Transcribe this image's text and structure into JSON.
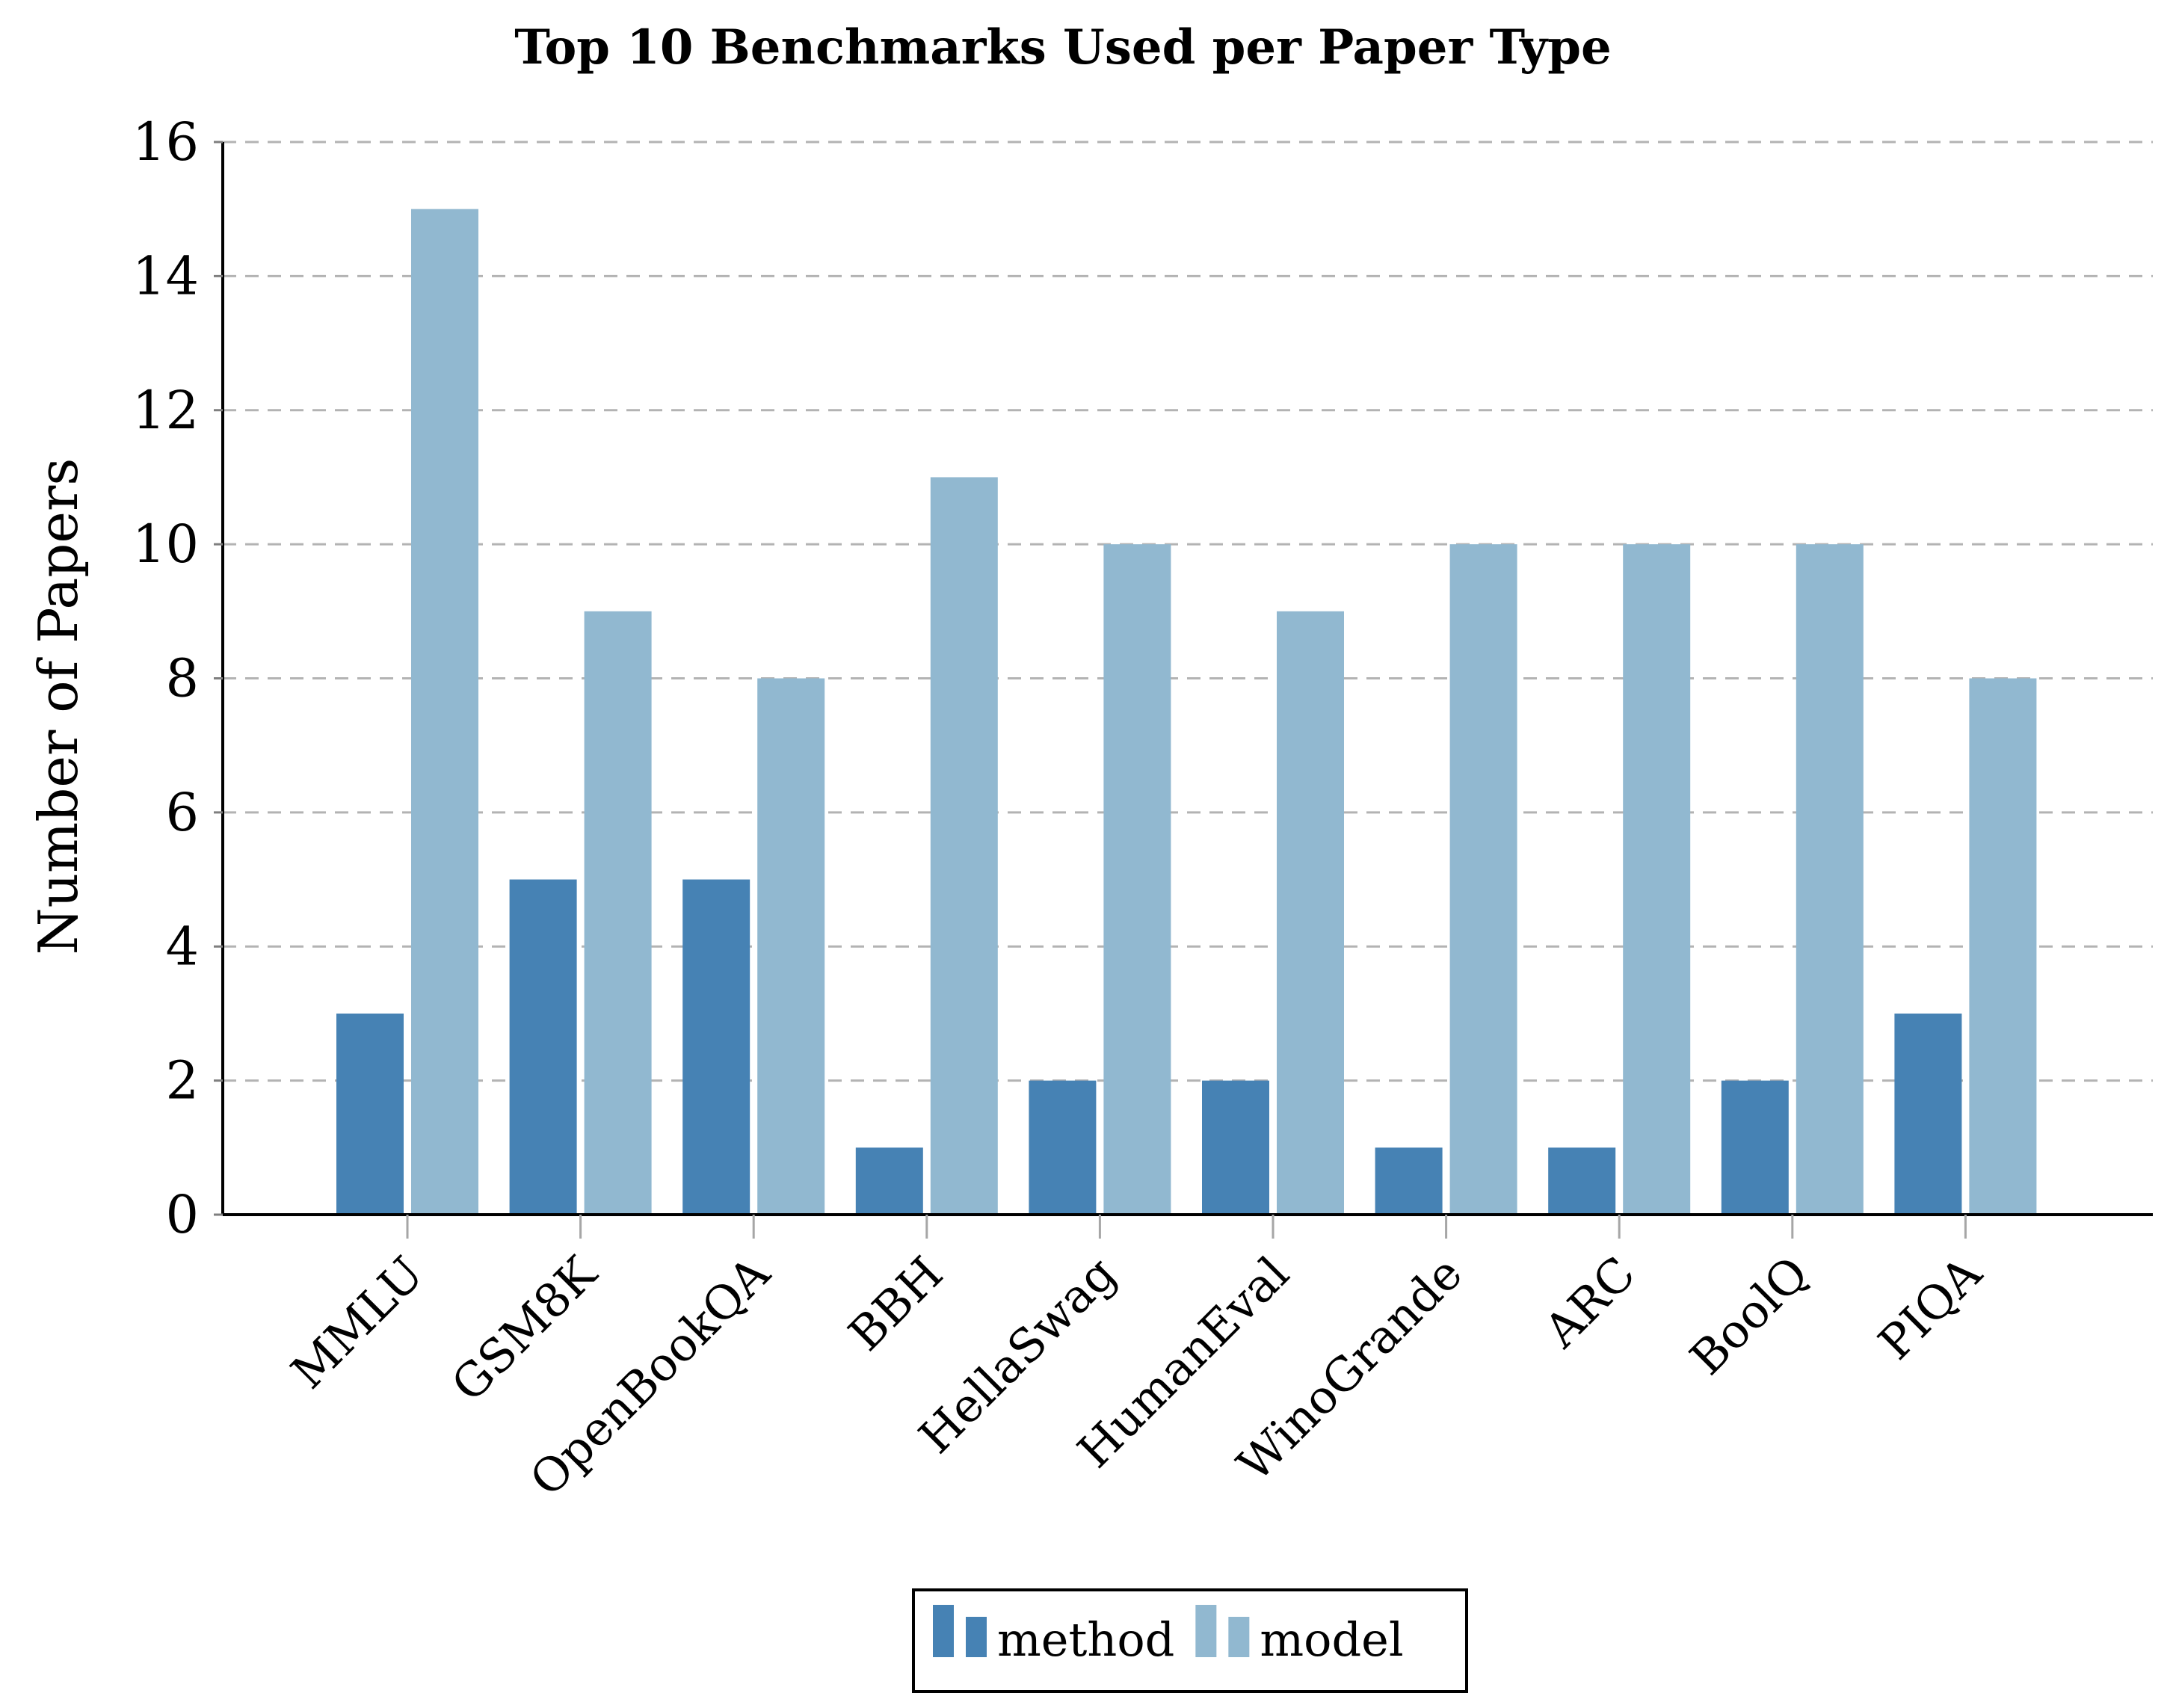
{
  "chart_data": {
    "type": "bar",
    "title": "Top 10 Benchmarks Used per Paper Type",
    "xlabel": "",
    "ylabel": "Number of Papers",
    "categories": [
      "MMLU",
      "GSM8K",
      "OpenBookQA",
      "BBH",
      "HellaSwag",
      "HumanEval",
      "WinoGrande",
      "ARC",
      "BoolQ",
      "PIQA"
    ],
    "series": [
      {
        "name": "method",
        "color": "#4682b4",
        "values": [
          3,
          5,
          5,
          1,
          2,
          2,
          1,
          1,
          2,
          3
        ]
      },
      {
        "name": "model",
        "color": "#91b8d0",
        "values": [
          15,
          9,
          8,
          11,
          10,
          9,
          10,
          10,
          10,
          8
        ]
      }
    ],
    "ylim": [
      0,
      16
    ],
    "yticks": [
      0,
      2,
      4,
      6,
      8,
      10,
      12,
      14,
      16
    ],
    "grid": "y-dashed",
    "legend_position": "bottom-center"
  }
}
